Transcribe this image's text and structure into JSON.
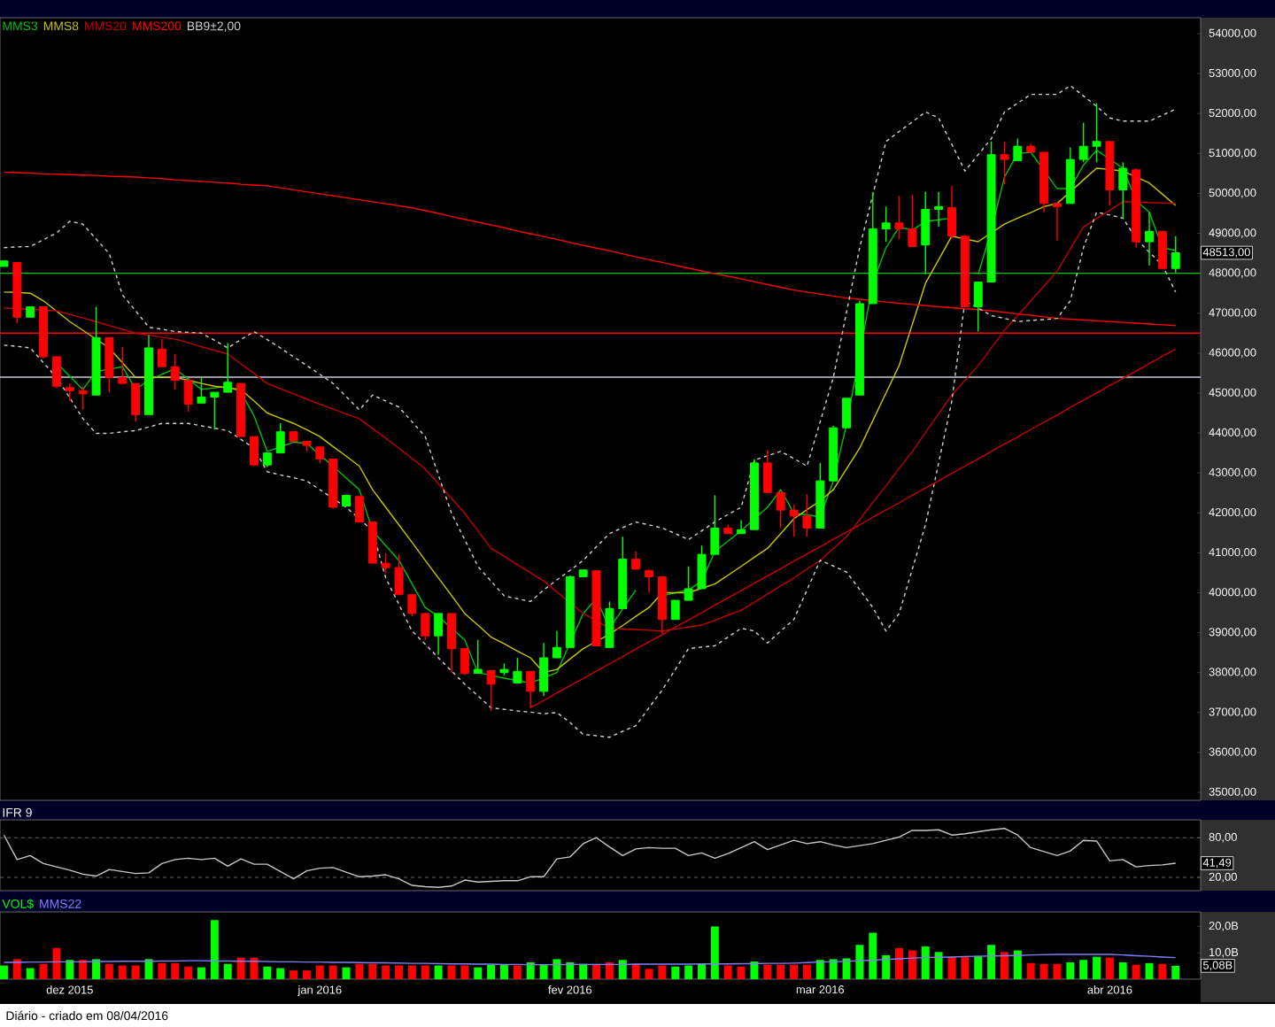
{
  "chart_data": [
    {
      "type": "candlestick",
      "tick_labels": "y",
      "legend": "top left",
      "ylim": [
        34800,
        54400
      ],
      "categories": [
        null,
        null,
        null,
        null,
        null,
        null,
        null,
        null,
        null,
        null,
        null,
        null,
        null,
        null,
        null,
        null,
        null,
        null,
        null,
        null,
        null,
        null,
        null,
        null,
        null,
        null,
        null,
        null,
        null,
        null,
        null,
        null,
        null,
        null,
        null,
        null,
        null,
        null,
        null,
        null,
        null,
        null,
        null,
        null,
        null,
        null,
        null,
        null,
        null,
        null,
        null,
        null,
        null,
        null,
        null,
        null,
        null,
        null,
        null,
        null,
        null,
        null,
        null,
        null,
        null,
        null,
        null,
        null,
        null,
        null,
        null,
        null,
        null,
        null,
        null,
        null,
        null,
        null,
        null,
        null,
        null,
        null,
        null,
        null,
        null,
        null,
        null,
        null,
        null,
        null
      ],
      "ohlc": [
        [
          48170,
          48310,
          48170,
          48310
        ],
        [
          48270,
          48270,
          46750,
          46900
        ],
        [
          46900,
          47160,
          46900,
          47160
        ],
        [
          47160,
          47160,
          45860,
          45910
        ],
        [
          45910,
          45910,
          45120,
          45170
        ],
        [
          45140,
          45240,
          44800,
          45060
        ],
        [
          45060,
          45170,
          44580,
          44980
        ],
        [
          44950,
          47160,
          44950,
          46390
        ],
        [
          46390,
          46390,
          45020,
          45390
        ],
        [
          45390,
          46160,
          45240,
          45240
        ],
        [
          45240,
          45240,
          44280,
          44460
        ],
        [
          44460,
          46450,
          44460,
          46130
        ],
        [
          46100,
          46350,
          45660,
          45660
        ],
        [
          45660,
          45980,
          45090,
          45320
        ],
        [
          45320,
          45320,
          44530,
          44720
        ],
        [
          44750,
          45390,
          44750,
          44900
        ],
        [
          44900,
          45020,
          44090,
          45020
        ],
        [
          45020,
          46250,
          45020,
          45270
        ],
        [
          45240,
          45240,
          43910,
          43910
        ],
        [
          43910,
          43910,
          43170,
          43200
        ],
        [
          43200,
          43500,
          43140,
          43500
        ],
        [
          43500,
          44240,
          43500,
          44030
        ],
        [
          44030,
          44030,
          43790,
          43790
        ],
        [
          43790,
          43790,
          43540,
          43690
        ],
        [
          43650,
          43650,
          43250,
          43350
        ],
        [
          43350,
          43350,
          42110,
          42140
        ],
        [
          42170,
          42440,
          42170,
          42440
        ],
        [
          42410,
          42410,
          41770,
          41770
        ],
        [
          41770,
          41770,
          40740,
          40740
        ],
        [
          40740,
          40990,
          40490,
          40630
        ],
        [
          40630,
          40960,
          39950,
          39950
        ],
        [
          39950,
          39950,
          39410,
          39480
        ],
        [
          39480,
          39480,
          38820,
          38920
        ],
        [
          38920,
          39480,
          38450,
          39480
        ],
        [
          39480,
          39480,
          38000,
          38600
        ],
        [
          38600,
          38600,
          37930,
          37980
        ],
        [
          37980,
          38820,
          37980,
          38080
        ],
        [
          38050,
          38050,
          37040,
          37710
        ],
        [
          38000,
          38230,
          37930,
          38080
        ],
        [
          37740,
          38370,
          37740,
          38030
        ],
        [
          38030,
          38030,
          37120,
          37530
        ],
        [
          37530,
          38740,
          37410,
          38370
        ],
        [
          38370,
          39040,
          38370,
          38630
        ],
        [
          38630,
          40440,
          38630,
          40400
        ],
        [
          40400,
          40570,
          40400,
          40570
        ],
        [
          40550,
          40550,
          38670,
          38670
        ],
        [
          38630,
          39780,
          38630,
          39600
        ],
        [
          39600,
          41400,
          39600,
          40840
        ],
        [
          40840,
          41030,
          40590,
          40590
        ],
        [
          40550,
          40590,
          40000,
          40400
        ],
        [
          40400,
          40400,
          38960,
          39330
        ],
        [
          39330,
          39810,
          39330,
          39810
        ],
        [
          39810,
          40660,
          39810,
          40100
        ],
        [
          40100,
          41180,
          40100,
          40960
        ],
        [
          40960,
          42440,
          40960,
          41620
        ],
        [
          41620,
          41700,
          41480,
          41480
        ],
        [
          41480,
          41820,
          41480,
          41580
        ],
        [
          41580,
          43350,
          41580,
          43250
        ],
        [
          43250,
          43570,
          42510,
          42510
        ],
        [
          42510,
          42510,
          41620,
          42070
        ],
        [
          42070,
          42210,
          41400,
          41920
        ],
        [
          41920,
          42470,
          41400,
          41620
        ],
        [
          41620,
          43250,
          41620,
          42800
        ],
        [
          42800,
          44180,
          42800,
          44130
        ],
        [
          44130,
          44870,
          44130,
          44870
        ],
        [
          44950,
          47310,
          44950,
          47240
        ],
        [
          47240,
          50040,
          47240,
          49110
        ],
        [
          49110,
          49670,
          48790,
          49260
        ],
        [
          49260,
          49940,
          48860,
          49110
        ],
        [
          49110,
          49970,
          48670,
          48670
        ],
        [
          48710,
          50040,
          47970,
          49600
        ],
        [
          49600,
          50040,
          49160,
          49670
        ],
        [
          49640,
          50190,
          48860,
          48930
        ],
        [
          48930,
          48930,
          47160,
          47160
        ],
        [
          47160,
          47780,
          46540,
          47780
        ],
        [
          47780,
          51300,
          47780,
          50970
        ],
        [
          50970,
          51300,
          50230,
          50850
        ],
        [
          50820,
          51370,
          50820,
          51180
        ],
        [
          51180,
          51240,
          51030,
          51030
        ],
        [
          51030,
          51030,
          49530,
          49750
        ],
        [
          49750,
          49750,
          48820,
          49670
        ],
        [
          49750,
          51150,
          49750,
          50850
        ],
        [
          50850,
          51770,
          50780,
          51180
        ],
        [
          51180,
          52260,
          50780,
          51300
        ],
        [
          51300,
          51300,
          49700,
          50090
        ],
        [
          50090,
          50780,
          49380,
          50630
        ],
        [
          50590,
          50630,
          48640,
          48790
        ],
        [
          48790,
          49530,
          48200,
          49050
        ],
        [
          49050,
          49050,
          48120,
          48120
        ],
        [
          48120,
          48930,
          48020,
          48513
        ]
      ],
      "colors": [
        "#00ff00",
        "#ff0000",
        "#00ff00",
        "#ff0000",
        "#ff0000",
        "#ff0000",
        "#ff0000",
        "#00ff00",
        "#ff0000",
        "#ff0000",
        "#ff0000",
        "#00ff00",
        "#ff0000",
        "#ff0000",
        "#ff0000",
        "#00ff00",
        "#00ff00",
        "#00ff00",
        "#ff0000",
        "#ff0000",
        "#00ff00",
        "#00ff00",
        "#ff0000",
        "#ff0000",
        "#ff0000",
        "#ff0000",
        "#00ff00",
        "#ff0000",
        "#ff0000",
        "#ff0000",
        "#ff0000",
        "#ff0000",
        "#ff0000",
        "#00ff00",
        "#ff0000",
        "#ff0000",
        "#00ff00",
        "#ff0000",
        "#00ff00",
        "#00ff00",
        "#ff0000",
        "#00ff00",
        "#00ff00",
        "#00ff00",
        "#00ff00",
        "#ff0000",
        "#00ff00",
        "#00ff00",
        "#ff0000",
        "#ff0000",
        "#ff0000",
        "#00ff00",
        "#00ff00",
        "#00ff00",
        "#00ff00",
        "#ff0000",
        "#00ff00",
        "#00ff00",
        "#ff0000",
        "#ff0000",
        "#ff0000",
        "#ff0000",
        "#00ff00",
        "#00ff00",
        "#00ff00",
        "#00ff00",
        "#00ff00",
        "#00ff00",
        "#ff0000",
        "#ff0000",
        "#00ff00",
        "#00ff00",
        "#ff0000",
        "#ff0000",
        "#00ff00",
        "#00ff00",
        "#ff0000",
        "#00ff00",
        "#ff0000",
        "#ff0000",
        "#ff0000",
        "#00ff00",
        "#00ff00",
        "#00ff00",
        "#ff0000",
        "#00ff00",
        "#ff0000",
        "#00ff00",
        "#ff0000",
        "#00ff00"
      ],
      "series": [
        {
          "name": "MMS3",
          "type": "line",
          "color": "#00c000",
          "values": [
            null,
            null,
            null,
            null,
            45760,
            45420,
            45090,
            45540,
            45600,
            45660,
            45090,
            45320,
            45470,
            45610,
            45350,
            45090,
            45130,
            45170,
            45020,
            44430,
            43540,
            43650,
            43770,
            43740,
            43450,
            43170,
            42870,
            42580,
            41550,
            41180,
            40810,
            40220,
            39630,
            39410,
            39110,
            38820,
            38000,
            37930,
            37860,
            37800,
            37740,
            37870,
            38000,
            38740,
            39480,
            39850,
            39110,
            39590,
            40070,
            null,
            39920,
            40000,
            40070,
            40290,
            41030,
            41290,
            41550,
            41850,
            42140,
            42580,
            41990,
            41950,
            41900,
            42800,
            44210,
            45980,
            47750,
            48640,
            49160,
            49080,
            49300,
            49340,
            49380,
            null,
            47970,
            49080,
            50410,
            51000,
            51030,
            50580,
            50120,
            50120,
            50710,
            51080,
            50860,
            50630,
            49820,
            49530,
            48640,
            48570
          ]
        },
        {
          "name": "MMS8",
          "type": "line",
          "color": "#c8c800",
          "values": [
            47530,
            47520,
            47500,
            47310,
            47050,
            46790,
            46570,
            46350,
            46130,
            45760,
            45390,
            45390,
            45390,
            45390,
            45320,
            45240,
            45170,
            45130,
            45090,
            44800,
            44500,
            44370,
            44240,
            44080,
            43910,
            43660,
            43420,
            43170,
            42580,
            42140,
            41700,
            41260,
            40810,
            40370,
            39930,
            39480,
            39190,
            38890,
            38720,
            38540,
            38370,
            38000,
            38080,
            38340,
            38600,
            38780,
            38960,
            39180,
            39410,
            39630,
            40000,
            40000,
            40000,
            40110,
            40220,
            40440,
            40660,
            40890,
            41110,
            41480,
            41850,
            42080,
            42300,
            42580,
            43100,
            43620,
            44310,
            45000,
            45690,
            46720,
            47750,
            48340,
            48930,
            48860,
            48790,
            49010,
            49230,
            49380,
            49520,
            49670,
            49750,
            50040,
            50340,
            50630,
            50600,
            50560,
            50410,
            50260,
            49980,
            49700
          ]
        },
        {
          "name": "MMS20",
          "type": "line",
          "color": "#c00000",
          "values": [
            47130,
            47110,
            47100,
            47080,
            47060,
            46970,
            46880,
            46790,
            46690,
            46600,
            46500,
            46450,
            46400,
            46350,
            46260,
            46160,
            46070,
            45980,
            45730,
            45490,
            45240,
            45110,
            44980,
            44850,
            44720,
            44600,
            44480,
            44360,
            44110,
            43870,
            43620,
            43360,
            43100,
            42730,
            42360,
            41990,
            41550,
            41110,
            40910,
            40700,
            40500,
            40290,
            40020,
            39750,
            39480,
            39300,
            39110,
            39090,
            39080,
            39060,
            39040,
            39090,
            39140,
            39190,
            39310,
            39440,
            39560,
            39760,
            39970,
            40170,
            40370,
            40590,
            40810,
            41110,
            41400,
            41830,
            42260,
            42680,
            43110,
            43540,
            44010,
            44480,
            44950,
            45320,
            45690,
            46130,
            46570,
            46940,
            47310,
            47680,
            48050,
            48610,
            49160,
            49370,
            49580,
            49790,
            49780,
            49770,
            49760,
            49750
          ]
        },
        {
          "name": "MMS200",
          "type": "line",
          "color": "#ff0000",
          "values": [
            50530,
            50520,
            50510,
            50490,
            50480,
            50470,
            50460,
            50450,
            50430,
            50420,
            50410,
            50390,
            50370,
            50340,
            50320,
            50300,
            50280,
            50260,
            50230,
            50210,
            50190,
            50140,
            50090,
            50040,
            49990,
            49940,
            49890,
            49840,
            49790,
            49740,
            49690,
            49640,
            49570,
            49500,
            49420,
            49350,
            49280,
            49210,
            49140,
            49060,
            48990,
            48920,
            48850,
            48770,
            48700,
            48630,
            48560,
            48490,
            48410,
            48340,
            48270,
            48200,
            48130,
            48060,
            47990,
            47930,
            47860,
            47790,
            47720,
            47650,
            47580,
            47530,
            47480,
            47430,
            47380,
            47350,
            47320,
            47280,
            47250,
            47220,
            47190,
            47160,
            47140,
            47110,
            47090,
            47060,
            47020,
            46980,
            46950,
            46910,
            46870,
            46850,
            46830,
            46810,
            46790,
            46770,
            46750,
            46730,
            46710,
            46690
          ]
        },
        {
          "name": "BB9±2,00",
          "type": "line",
          "line_style": "dashed",
          "color": "#d0d0d0",
          "values": [
            48640,
            48660,
            48670,
            48840,
            49010,
            49300,
            49230,
            48860,
            48490,
            47460,
            47060,
            46650,
            46600,
            46540,
            46520,
            46500,
            46320,
            46130,
            46340,
            46540,
            46340,
            46130,
            45910,
            45690,
            45470,
            45240,
            44910,
            44580,
            44950,
            44800,
            44650,
            44280,
            43910,
            42950,
            41990,
            41330,
            40660,
            40290,
            39920,
            39850,
            39780,
            40070,
            40320,
            40560,
            40810,
            41150,
            41480,
            41630,
            41770,
            41700,
            41620,
            41480,
            41330,
            41550,
            41770,
            41960,
            42140,
            43320,
            43430,
            43540,
            43360,
            43170,
            44280,
            45390,
            47020,
            48640,
            49970,
            51300,
            51550,
            51790,
            52040,
            51890,
            51230,
            50560,
            50970,
            51370,
            52040,
            52260,
            52480,
            52480,
            52480,
            52700,
            52440,
            52180,
            51890,
            51810,
            51810,
            51810,
            51960,
            52110
          ]
        },
        {
          "type": "line",
          "line_style": "dashed",
          "color": "#d0d0d0",
          "values": [
            46200,
            46170,
            46130,
            45760,
            45390,
            44880,
            44360,
            43990,
            43990,
            44030,
            44060,
            44150,
            44240,
            44240,
            44240,
            44180,
            44120,
            44060,
            43840,
            43620,
            43030,
            42950,
            42880,
            42800,
            42580,
            42360,
            42140,
            41850,
            41550,
            40370,
            39710,
            39040,
            38710,
            38370,
            38040,
            37710,
            37420,
            37120,
            37080,
            37040,
            37010,
            36970,
            37000,
            36750,
            36450,
            36420,
            36380,
            36530,
            36670,
            37120,
            37560,
            38080,
            38600,
            38640,
            38670,
            38890,
            39110,
            39040,
            38740,
            39040,
            39330,
            40070,
            40810,
            40670,
            40520,
            40080,
            39630,
            39040,
            39480,
            40590,
            41700,
            43250,
            44800,
            47310,
            47130,
            46940,
            46870,
            46790,
            46820,
            46840,
            46870,
            47310,
            48640,
            49530,
            49460,
            49380,
            48860,
            48530,
            48200,
            47530
          ]
        },
        {
          "type": "line",
          "color": "#cc0000",
          "values": [
            null,
            null,
            null,
            null,
            null,
            null,
            null,
            null,
            null,
            null,
            null,
            null,
            null,
            null,
            null,
            null,
            null,
            null,
            null,
            null,
            null,
            null,
            null,
            null,
            null,
            null,
            null,
            null,
            null,
            null,
            null,
            null,
            null,
            null,
            null,
            null,
            null,
            null,
            null,
            null,
            37120,
            37300,
            37490,
            37670,
            37850,
            38040,
            38220,
            38400,
            38590,
            38770,
            38950,
            39140,
            39320,
            39500,
            39690,
            39870,
            40050,
            40240,
            40420,
            40600,
            40790,
            40970,
            41150,
            41340,
            41520,
            41700,
            41890,
            42070,
            42250,
            42440,
            42620,
            42800,
            42990,
            43170,
            43350,
            43540,
            43720,
            43900,
            44090,
            44270,
            44450,
            44640,
            44820,
            45000,
            45190,
            45370,
            45550,
            45740,
            45920,
            46100
          ]
        }
      ],
      "ref_lines": [
        {
          "axis": "y",
          "value": 48000,
          "color": "#00c800"
        },
        {
          "axis": "y",
          "value": 46500,
          "color": "#ff0000"
        },
        {
          "axis": "y",
          "value": 45400,
          "color": "#c8c8dc"
        }
      ],
      "annotations": [
        "48513,00"
      ],
      "yticks": [
        {
          "value": 35000,
          "label": "35000,00"
        },
        {
          "value": 36000,
          "label": "36000,00"
        },
        {
          "value": 37000,
          "label": "37000,00"
        },
        {
          "value": 38000,
          "label": "38000,00"
        },
        {
          "value": 39000,
          "label": "39000,00"
        },
        {
          "value": 40000,
          "label": "40000,00"
        },
        {
          "value": 41000,
          "label": "41000,00"
        },
        {
          "value": 42000,
          "label": "42000,00"
        },
        {
          "value": 43000,
          "label": "43000,00"
        },
        {
          "value": 44000,
          "label": "44000,00"
        },
        {
          "value": 45000,
          "label": "45000,00"
        },
        {
          "value": 46000,
          "label": "46000,00"
        },
        {
          "value": 47000,
          "label": "47000,00"
        },
        {
          "value": 48000,
          "label": "48000,00"
        },
        {
          "value": 49000,
          "label": "49000,00"
        },
        {
          "value": 50000,
          "label": "50000,00"
        },
        {
          "value": 51000,
          "label": "51000,00"
        },
        {
          "value": 52000,
          "label": "52000,00"
        },
        {
          "value": 53000,
          "label": "53000,00"
        },
        {
          "value": 54000,
          "label": "54000,00"
        }
      ]
    },
    {
      "type": "line",
      "title": "IFR 9",
      "tick_labels": "y",
      "grid": "y",
      "color": "#c8c8c8",
      "ylim": [
        0,
        107
      ],
      "yticks": [
        {
          "value": 20,
          "label": "20,00"
        },
        {
          "value": 80,
          "label": "80,00"
        }
      ],
      "categories": [
        null,
        null,
        null,
        null,
        null,
        null,
        null,
        null,
        null,
        null,
        null,
        null,
        null,
        null,
        null,
        null,
        null,
        null,
        null,
        null,
        null,
        null,
        null,
        null,
        null,
        null,
        null,
        null,
        null,
        null,
        null,
        null,
        null,
        null,
        null,
        null,
        null,
        null,
        null,
        null,
        null,
        null,
        null,
        null,
        null,
        null,
        null,
        null,
        null,
        null,
        null,
        null,
        null,
        null,
        null,
        null,
        null,
        null,
        null,
        null,
        null,
        null,
        null,
        null,
        null,
        null,
        null,
        null,
        null,
        null,
        null,
        null,
        null,
        null,
        null,
        null,
        null,
        null,
        null,
        null,
        null,
        null,
        null,
        null,
        null,
        null,
        null,
        null,
        null,
        null
      ],
      "values": [
        84,
        47,
        53,
        41,
        36,
        31,
        25,
        22,
        32,
        29,
        26,
        27,
        41,
        47,
        49,
        47,
        49,
        37,
        48,
        40,
        40,
        29,
        18,
        30,
        34,
        35,
        28,
        21,
        22,
        24,
        18,
        8,
        6,
        5,
        7,
        16,
        13,
        14,
        15,
        15,
        21,
        21,
        48,
        51,
        71,
        80,
        66,
        53,
        63,
        65,
        64,
        64,
        53,
        57,
        49,
        56,
        65,
        74,
        62,
        69,
        76,
        71,
        74,
        69,
        65,
        68,
        71,
        76,
        81,
        91,
        91,
        92,
        84,
        86,
        89,
        92,
        94,
        84,
        65,
        59,
        53,
        60,
        76,
        75,
        45,
        47,
        36,
        38,
        39,
        41.49
      ],
      "annotations": [
        "41,49"
      ]
    },
    {
      "type": "bar",
      "legend": "top left",
      "ylim": [
        0,
        25.5
      ],
      "yticks": [
        {
          "value": 10,
          "label": "10,0B"
        },
        {
          "value": 20,
          "label": "20,0B"
        }
      ],
      "categories": [
        null,
        null,
        null,
        null,
        null,
        "dez 2015",
        null,
        null,
        null,
        null,
        null,
        null,
        null,
        null,
        null,
        null,
        null,
        null,
        null,
        null,
        null,
        null,
        null,
        null,
        "jan 2016",
        null,
        null,
        null,
        null,
        null,
        null,
        null,
        null,
        null,
        null,
        null,
        null,
        null,
        null,
        null,
        null,
        null,
        null,
        "fev 2016",
        null,
        null,
        null,
        null,
        null,
        null,
        null,
        null,
        null,
        null,
        null,
        null,
        null,
        null,
        null,
        null,
        null,
        null,
        "mar 2016",
        null,
        null,
        null,
        null,
        null,
        null,
        null,
        null,
        null,
        null,
        null,
        null,
        null,
        null,
        null,
        null,
        null,
        null,
        null,
        null,
        null,
        "abr 2016",
        null,
        null,
        null,
        null,
        null
      ],
      "series": [
        {
          "name": "VOL$",
          "type": "bar",
          "color": "#00ff00",
          "values": [
            5.2,
            7.6,
            4.2,
            5.8,
            11.8,
            7.3,
            7.3,
            7.6,
            5.8,
            5.2,
            5.2,
            7.6,
            6.1,
            6.1,
            4.8,
            4.5,
            22.4,
            5.8,
            8.2,
            8.2,
            4.8,
            4.2,
            3.3,
            3.3,
            5.2,
            5.2,
            4.5,
            5.8,
            5.8,
            5.2,
            5.2,
            5.2,
            5.2,
            5.2,
            5.2,
            5.2,
            4.5,
            5.5,
            5.5,
            5.2,
            6.4,
            5.5,
            7.6,
            6.4,
            5.8,
            5.8,
            6.4,
            7.3,
            5.8,
            3.9,
            5.2,
            4.8,
            5.2,
            5.8,
            20,
            5.2,
            4.8,
            6.7,
            5.5,
            5.5,
            5.5,
            5.5,
            7.3,
            7.6,
            7.9,
            13,
            17.6,
            9.1,
            11.8,
            10.9,
            12.4,
            10.3,
            8.5,
            8.5,
            8.8,
            13,
            10.3,
            10.9,
            6.1,
            5.8,
            5.8,
            6.4,
            7.3,
            8.5,
            8.2,
            6.4,
            5.5,
            6.1,
            5.8,
            5.08
          ],
          "colors": [
            "#00ff00",
            "#ff0000",
            "#00ff00",
            "#ff0000",
            "#ff0000",
            "#00ff00",
            "#ff0000",
            "#00ff00",
            "#ff0000",
            "#ff0000",
            "#ff0000",
            "#00ff00",
            "#ff0000",
            "#ff0000",
            "#ff0000",
            "#00ff00",
            "#00ff00",
            "#00ff00",
            "#ff0000",
            "#ff0000",
            "#00ff00",
            "#00ff00",
            "#ff0000",
            "#ff0000",
            "#ff0000",
            "#ff0000",
            "#00ff00",
            "#ff0000",
            "#ff0000",
            "#ff0000",
            "#ff0000",
            "#ff0000",
            "#ff0000",
            "#00ff00",
            "#ff0000",
            "#ff0000",
            "#00ff00",
            "#00ff00",
            "#00ff00",
            "#ff0000",
            "#00ff00",
            "#00ff00",
            "#00ff00",
            "#00ff00",
            "#00ff00",
            "#ff0000",
            "#ff0000",
            "#00ff00",
            "#ff0000",
            "#ff0000",
            "#ff0000",
            "#00ff00",
            "#00ff00",
            "#00ff00",
            "#00ff00",
            "#ff0000",
            "#ff0000",
            "#00ff00",
            "#ff0000",
            "#ff0000",
            "#ff0000",
            "#ff0000",
            "#00ff00",
            "#00ff00",
            "#00ff00",
            "#00ff00",
            "#00ff00",
            "#00ff00",
            "#ff0000",
            "#ff0000",
            "#00ff00",
            "#00ff00",
            "#ff0000",
            "#ff0000",
            "#00ff00",
            "#00ff00",
            "#ff0000",
            "#00ff00",
            "#ff0000",
            "#ff0000",
            "#ff0000",
            "#00ff00",
            "#00ff00",
            "#00ff00",
            "#ff0000",
            "#00ff00",
            "#ff0000",
            "#00ff00",
            "#ff0000",
            "#00ff00"
          ]
        },
        {
          "name": "MMS22",
          "type": "line",
          "color": "#8080ff",
          "values": [
            6.4,
            6.4,
            6.5,
            6.5,
            6.6,
            6.6,
            6.6,
            6.7,
            6.7,
            6.8,
            6.8,
            6.8,
            6.9,
            6.9,
            7.0,
            7.0,
            6.9,
            6.9,
            6.8,
            6.8,
            6.7,
            6.6,
            6.6,
            6.5,
            6.5,
            6.4,
            6.4,
            6.3,
            6.2,
            6.2,
            6.1,
            6.0,
            6.0,
            5.9,
            5.8,
            5.8,
            5.7,
            5.7,
            5.6,
            5.6,
            5.5,
            5.5,
            5.5,
            5.6,
            5.6,
            5.6,
            5.6,
            5.6,
            5.7,
            5.7,
            5.7,
            5.7,
            5.7,
            5.8,
            5.8,
            5.8,
            5.9,
            5.9,
            6.0,
            6.0,
            6.1,
            6.3,
            6.5,
            6.6,
            6.8,
            7.0,
            7.2,
            7.5,
            7.7,
            8.0,
            8.2,
            8.3,
            8.4,
            8.6,
            8.7,
            8.8,
            8.9,
            9.0,
            9.2,
            9.3,
            9.4,
            9.4,
            9.4,
            9.4,
            9.4,
            9.2,
            8.9,
            8.7,
            8.4,
            8.2
          ]
        }
      ],
      "annotations": [
        "5,08B",
        "Diário - criado em 08/04/2016"
      ]
    }
  ]
}
